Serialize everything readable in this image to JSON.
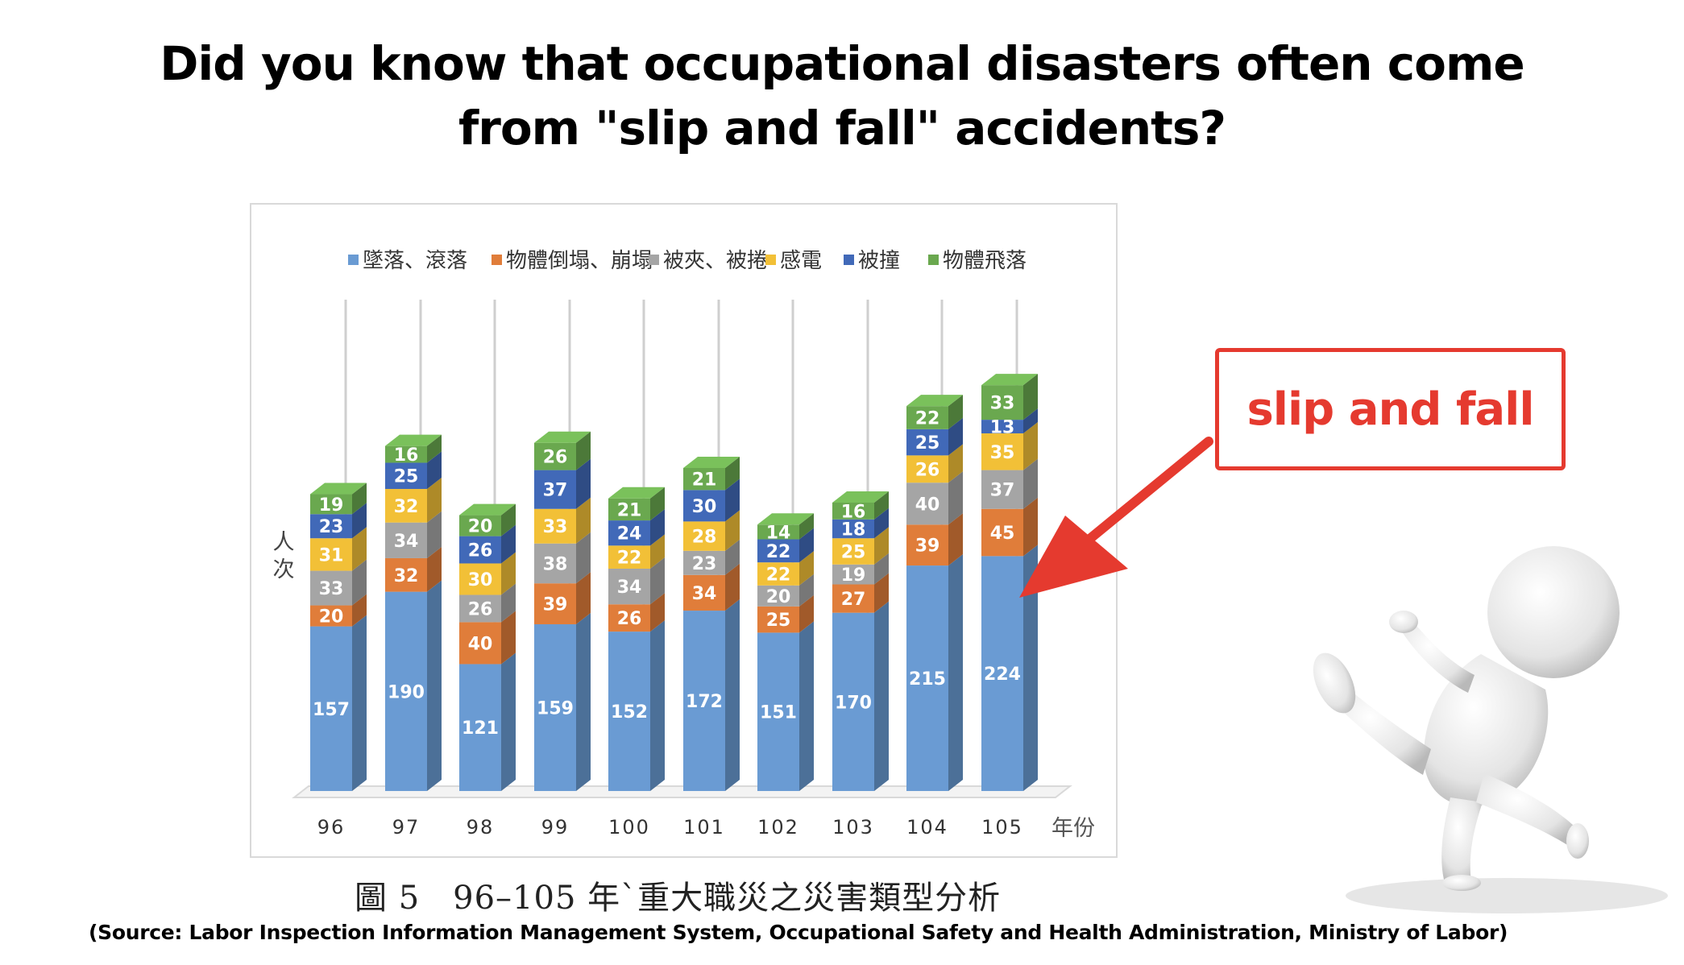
{
  "headline": {
    "line1": "Did you know that occupational disasters often come",
    "line2": "from \"slip and fall\" accidents?"
  },
  "caption": "圖 5　96–105 年`重大職災之災害類型分析",
  "source": "(Source: Labor Inspection Information Management System, Occupational Safety and Health Administration, Ministry of Labor)",
  "callout": {
    "label": "slip and fall"
  },
  "illustration": {
    "icon": "falling-person-figure"
  },
  "colors": {
    "accent_red": "#e53a2f",
    "series": [
      "#6a9bd3",
      "#e07d3a",
      "#a5a5a5",
      "#f2c037",
      "#4169b8",
      "#6aa84f"
    ]
  },
  "chart_data": {
    "type": "bar",
    "stacked": true,
    "ylabel": "人次",
    "xlabel": "年份",
    "legend_position": "top",
    "grid": true,
    "categories": [
      "96",
      "97",
      "98",
      "99",
      "100",
      "101",
      "102",
      "103",
      "104",
      "105"
    ],
    "series": [
      {
        "name": "墜落、滾落",
        "values": [
          157,
          190,
          121,
          159,
          152,
          172,
          151,
          170,
          215,
          224
        ]
      },
      {
        "name": "物體倒塌、崩塌",
        "values": [
          20,
          32,
          40,
          39,
          26,
          34,
          25,
          27,
          39,
          45
        ]
      },
      {
        "name": "被夾、被捲",
        "values": [
          33,
          34,
          26,
          38,
          34,
          23,
          20,
          19,
          40,
          37
        ]
      },
      {
        "name": "感電",
        "values": [
          31,
          32,
          30,
          33,
          22,
          28,
          22,
          25,
          26,
          35
        ]
      },
      {
        "name": "被撞",
        "values": [
          23,
          25,
          26,
          37,
          24,
          30,
          22,
          18,
          25,
          13
        ]
      },
      {
        "name": "物體飛落",
        "values": [
          19,
          16,
          20,
          26,
          21,
          21,
          14,
          16,
          22,
          33
        ]
      }
    ]
  }
}
